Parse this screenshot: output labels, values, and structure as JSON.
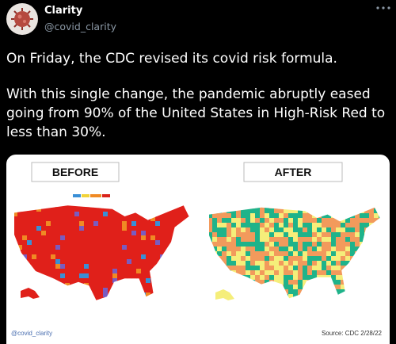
{
  "header": {
    "name": "Clarity",
    "handle": "@covid_clarity"
  },
  "tweet": {
    "paragraphs": [
      "On Friday, the CDC revised its covid risk formula.",
      "With this single change, the pandemic abruptly eased going from 90% of the United States in High-Risk Red to less than 30%."
    ]
  },
  "image": {
    "before_label": "BEFORE",
    "after_label": "AFTER",
    "credit": "@covid_clarity",
    "source": "Source: CDC 2/28/22"
  }
}
